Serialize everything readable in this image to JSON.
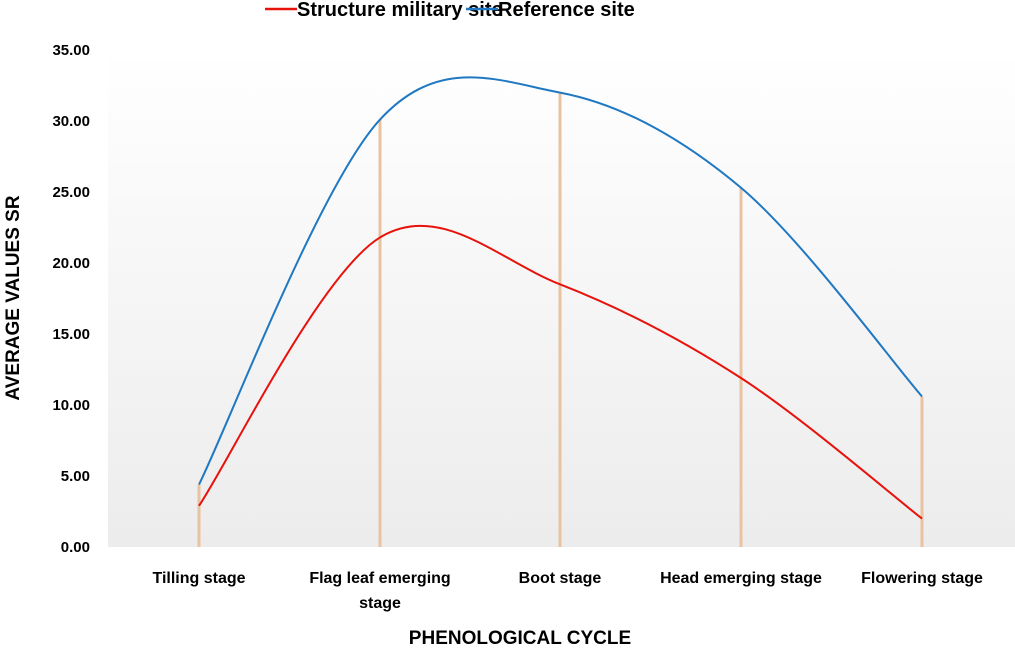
{
  "chart_data": {
    "type": "line",
    "title": "",
    "xlabel": "PHENOLOGICAL CYCLE",
    "ylabel": "AVERAGE VALUES SR",
    "categories": [
      "Tilling  stage",
      "Flag leaf emerging stage",
      "Boot  stage",
      "Head emerging stage",
      "Flowering stage"
    ],
    "category_lines": [
      [
        "Tilling  stage"
      ],
      [
        "Flag leaf emerging",
        "stage"
      ],
      [
        "Boot  stage"
      ],
      [
        "Head emerging stage"
      ],
      [
        "Flowering stage"
      ]
    ],
    "ylim": [
      0,
      35
    ],
    "yticks": [
      "0.00",
      "5.00",
      "10.00",
      "15.00",
      "20.00",
      "25.00",
      "30.00",
      "35.00"
    ],
    "grid": false,
    "legend_position": "top-center",
    "series": [
      {
        "name": "Structure military site",
        "color": "#e8120c",
        "values": [
          2.9,
          21.8,
          18.5,
          11.9,
          2.0
        ]
      },
      {
        "name": "Reference site",
        "color": "#1f78c1",
        "values": [
          4.4,
          30.1,
          32.0,
          25.3,
          10.6
        ]
      }
    ],
    "drop_line_color": "#e9c3a0",
    "smooth": true
  }
}
